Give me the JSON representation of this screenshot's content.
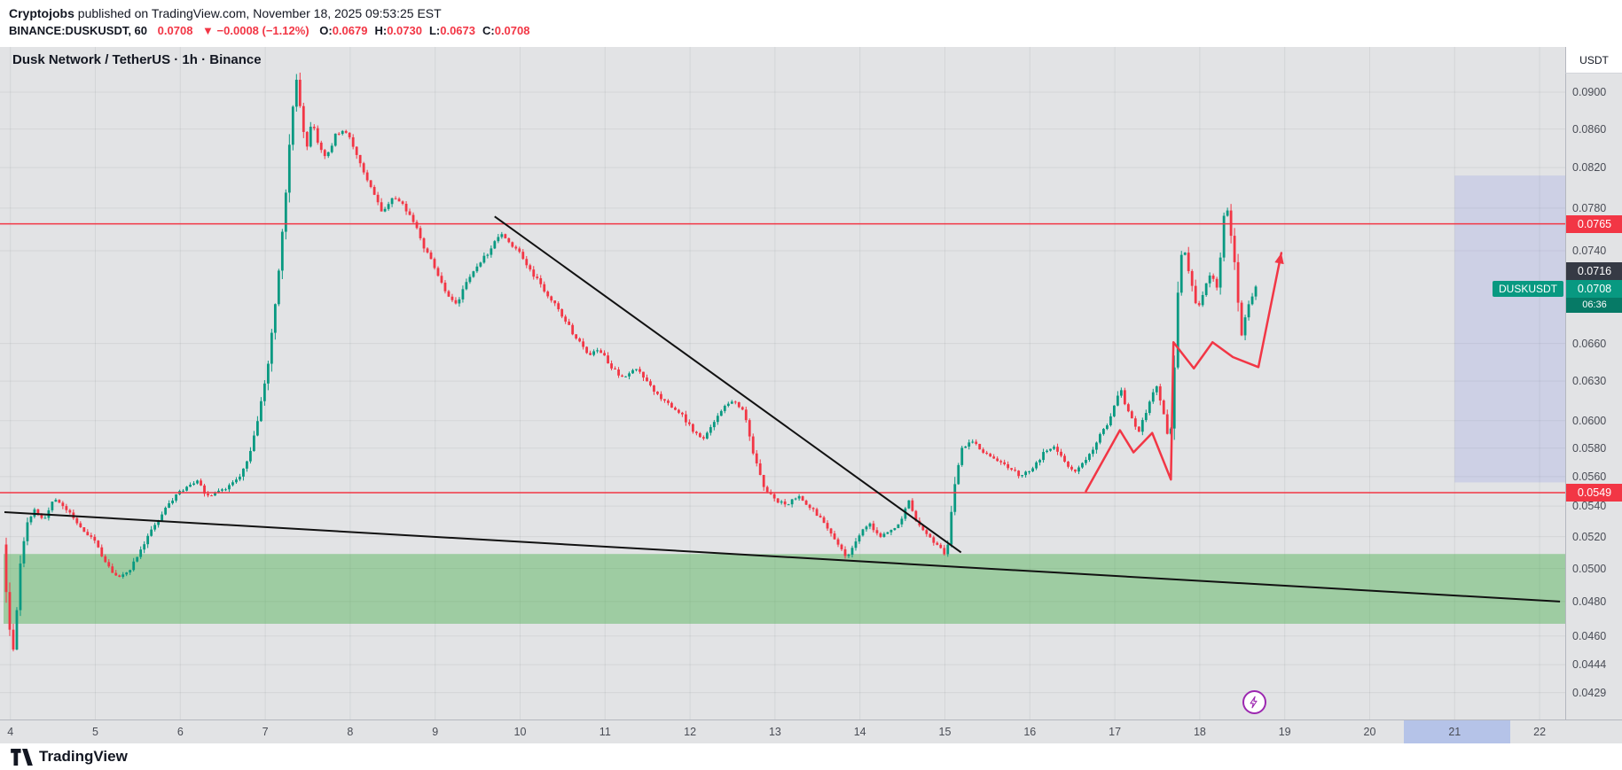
{
  "attribution": {
    "publisher": "Cryptojobs",
    "suffix": " published on TradingView.com, November 18, 2025 09:53:25 EST"
  },
  "quote_bar": {
    "symbol": "BINANCE:DUSKUSDT, 60",
    "last": "0.0708",
    "direction": "▼",
    "change": "−0.0008 (−1.12%)",
    "ohlc": [
      {
        "label": "O:",
        "value": "0.0679"
      },
      {
        "label": "H:",
        "value": "0.0730"
      },
      {
        "label": "L:",
        "value": "0.0673"
      },
      {
        "label": "C:",
        "value": "0.0708"
      }
    ]
  },
  "chart": {
    "legend": "Dusk Network / TetherUS · 1h · Binance",
    "unit_box": "USDT",
    "symbol_tag": "DUSKUSDT",
    "countdown": "06:36",
    "last_price_value": 0.0708,
    "logo_text": "TradingView",
    "badges": [
      {
        "text": "0.0765",
        "price": 0.0765,
        "type": "level"
      },
      {
        "text": "0.0716",
        "price": 0.0716,
        "type": "dark"
      },
      {
        "text": "0.0708",
        "price": 0.0708,
        "type": "last"
      },
      {
        "text": "0.0549",
        "price": 0.0549,
        "type": "level"
      }
    ],
    "colors": {
      "up": "#089981",
      "down": "#f23645",
      "level": "#f23645",
      "projection": "#f23645",
      "trendline": "#111111",
      "zone_fill": "rgba(76,175,80,0.45)",
      "band_fill": "rgba(100,110,230,0.16)",
      "grid": "rgba(54,58,69,0.08)",
      "background": "#e2e3e5",
      "last_badge": "#089981",
      "dark_badge": "#363a45",
      "lightning": "#9c27b0"
    }
  },
  "chart_data": {
    "type": "candlestick",
    "title": "Dusk Network / TetherUS · 1h · Binance",
    "symbol": "BINANCE:DUSKUSDT",
    "exchange": "Binance",
    "interval": "1h",
    "last": {
      "open": 0.0679,
      "high": 0.073,
      "low": 0.0673,
      "close": 0.0708,
      "change": "−0.0008",
      "change_pct": "−1.12%"
    },
    "x_axis": {
      "unit": "day of November 2025",
      "labels": [
        "4",
        "5",
        "6",
        "7",
        "8",
        "9",
        "10",
        "11",
        "12",
        "13",
        "14",
        "15",
        "16",
        "17",
        "18",
        "19",
        "20",
        "21",
        "22"
      ]
    },
    "y_axis": {
      "scale": "log",
      "side": "right",
      "visible_range": [
        0.0415,
        0.0952
      ],
      "tick_labels": [
        "0.0900",
        "0.0860",
        "0.0820",
        "0.0780",
        "0.0740",
        "0.0660",
        "0.0630",
        "0.0600",
        "0.0580",
        "0.0560",
        "0.0540",
        "0.0520",
        "0.0500",
        "0.0480",
        "0.0460",
        "0.0444",
        "0.0429"
      ]
    },
    "anchor_format": "[day_of_november, price] approximate hourly close path read from the chart",
    "price_path_anchors": [
      [
        3.93,
        0.0515
      ],
      [
        4.0,
        0.0468
      ],
      [
        4.06,
        0.0452
      ],
      [
        4.14,
        0.0505
      ],
      [
        4.22,
        0.0528
      ],
      [
        4.32,
        0.0538
      ],
      [
        4.42,
        0.053
      ],
      [
        4.52,
        0.0545
      ],
      [
        4.62,
        0.054
      ],
      [
        4.72,
        0.0535
      ],
      [
        4.82,
        0.0528
      ],
      [
        4.92,
        0.0522
      ],
      [
        5.02,
        0.0516
      ],
      [
        5.14,
        0.0504
      ],
      [
        5.28,
        0.0494
      ],
      [
        5.42,
        0.0498
      ],
      [
        5.56,
        0.0512
      ],
      [
        5.7,
        0.0526
      ],
      [
        5.84,
        0.0538
      ],
      [
        5.98,
        0.0548
      ],
      [
        6.1,
        0.0553
      ],
      [
        6.22,
        0.0558
      ],
      [
        6.34,
        0.0546
      ],
      [
        6.46,
        0.0549
      ],
      [
        6.58,
        0.0553
      ],
      [
        6.72,
        0.056
      ],
      [
        6.84,
        0.0575
      ],
      [
        6.96,
        0.0608
      ],
      [
        7.08,
        0.0655
      ],
      [
        7.18,
        0.0718
      ],
      [
        7.26,
        0.0788
      ],
      [
        7.33,
        0.0868
      ],
      [
        7.38,
        0.092
      ],
      [
        7.44,
        0.0878
      ],
      [
        7.5,
        0.0838
      ],
      [
        7.57,
        0.087
      ],
      [
        7.64,
        0.0845
      ],
      [
        7.74,
        0.083
      ],
      [
        7.84,
        0.0852
      ],
      [
        7.94,
        0.086
      ],
      [
        8.04,
        0.0845
      ],
      [
        8.16,
        0.082
      ],
      [
        8.28,
        0.0798
      ],
      [
        8.4,
        0.0775
      ],
      [
        8.52,
        0.0792
      ],
      [
        8.64,
        0.0784
      ],
      [
        8.76,
        0.0768
      ],
      [
        8.88,
        0.0745
      ],
      [
        9.0,
        0.0728
      ],
      [
        9.12,
        0.0706
      ],
      [
        9.26,
        0.0692
      ],
      [
        9.4,
        0.0712
      ],
      [
        9.54,
        0.0728
      ],
      [
        9.68,
        0.0742
      ],
      [
        9.78,
        0.0757
      ],
      [
        9.88,
        0.0748
      ],
      [
        10.0,
        0.074
      ],
      [
        10.12,
        0.0724
      ],
      [
        10.26,
        0.071
      ],
      [
        10.4,
        0.0695
      ],
      [
        10.54,
        0.0681
      ],
      [
        10.68,
        0.0664
      ],
      [
        10.82,
        0.0651
      ],
      [
        10.96,
        0.0654
      ],
      [
        11.1,
        0.0641
      ],
      [
        11.24,
        0.0631
      ],
      [
        11.38,
        0.0641
      ],
      [
        11.52,
        0.0628
      ],
      [
        11.66,
        0.0618
      ],
      [
        11.8,
        0.0611
      ],
      [
        11.94,
        0.0603
      ],
      [
        12.06,
        0.0592
      ],
      [
        12.18,
        0.0586
      ],
      [
        12.3,
        0.0598
      ],
      [
        12.42,
        0.061
      ],
      [
        12.54,
        0.0616
      ],
      [
        12.66,
        0.0606
      ],
      [
        12.78,
        0.0574
      ],
      [
        12.9,
        0.0552
      ],
      [
        13.02,
        0.0544
      ],
      [
        13.16,
        0.0541
      ],
      [
        13.3,
        0.0547
      ],
      [
        13.44,
        0.0539
      ],
      [
        13.58,
        0.0531
      ],
      [
        13.72,
        0.0519
      ],
      [
        13.86,
        0.0506
      ],
      [
        14.0,
        0.0521
      ],
      [
        14.12,
        0.0529
      ],
      [
        14.24,
        0.052
      ],
      [
        14.36,
        0.0524
      ],
      [
        14.48,
        0.0528
      ],
      [
        14.59,
        0.0544
      ],
      [
        14.7,
        0.0529
      ],
      [
        14.82,
        0.0521
      ],
      [
        14.94,
        0.0514
      ],
      [
        15.04,
        0.0508
      ],
      [
        15.12,
        0.0547
      ],
      [
        15.22,
        0.0579
      ],
      [
        15.34,
        0.0586
      ],
      [
        15.48,
        0.0577
      ],
      [
        15.62,
        0.0571
      ],
      [
        15.76,
        0.0567
      ],
      [
        15.9,
        0.0561
      ],
      [
        16.04,
        0.0565
      ],
      [
        16.18,
        0.0576
      ],
      [
        16.3,
        0.0581
      ],
      [
        16.42,
        0.0572
      ],
      [
        16.54,
        0.0562
      ],
      [
        16.68,
        0.0572
      ],
      [
        16.82,
        0.0586
      ],
      [
        16.96,
        0.06
      ],
      [
        17.08,
        0.0626
      ],
      [
        17.18,
        0.0606
      ],
      [
        17.3,
        0.0592
      ],
      [
        17.42,
        0.0611
      ],
      [
        17.52,
        0.0628
      ],
      [
        17.6,
        0.0603
      ],
      [
        17.67,
        0.0581
      ],
      [
        17.73,
        0.0655
      ],
      [
        17.79,
        0.0728
      ],
      [
        17.84,
        0.0742
      ],
      [
        17.91,
        0.0713
      ],
      [
        17.99,
        0.0686
      ],
      [
        18.07,
        0.0703
      ],
      [
        18.15,
        0.0722
      ],
      [
        18.23,
        0.0705
      ],
      [
        18.29,
        0.0765
      ],
      [
        18.33,
        0.0788
      ],
      [
        18.39,
        0.0753
      ],
      [
        18.45,
        0.0713
      ],
      [
        18.51,
        0.0668
      ],
      [
        18.57,
        0.0685
      ],
      [
        18.63,
        0.0699
      ],
      [
        18.68,
        0.0708
      ]
    ],
    "horizontal_levels": [
      0.0765,
      0.0549
    ],
    "support_zone": {
      "top": 0.0509,
      "bottom": 0.0467
    },
    "trendlines": [
      {
        "from": [
          9.7,
          0.0772
        ],
        "to": [
          15.19,
          0.051
        ]
      },
      {
        "from": [
          3.93,
          0.0536
        ],
        "to": [
          22.24,
          0.048
        ]
      }
    ],
    "projection_path": [
      [
        16.66,
        0.055
      ],
      [
        17.06,
        0.0593
      ],
      [
        17.22,
        0.0577
      ],
      [
        17.44,
        0.0591
      ],
      [
        17.66,
        0.0558
      ],
      [
        17.69,
        0.0661
      ],
      [
        17.93,
        0.064
      ],
      [
        18.15,
        0.0661
      ],
      [
        18.39,
        0.0649
      ],
      [
        18.69,
        0.0641
      ],
      [
        18.96,
        0.0738
      ]
    ],
    "right_highlight_band": {
      "day_from": 21.0,
      "day_to": 22.35,
      "price_from": 0.0556,
      "price_to": 0.0812
    },
    "time_axis_highlight": {
      "day_from": 20.4,
      "day_to": 21.65
    },
    "lightning_marker": {
      "day": 18.64,
      "price": 0.0424
    }
  }
}
